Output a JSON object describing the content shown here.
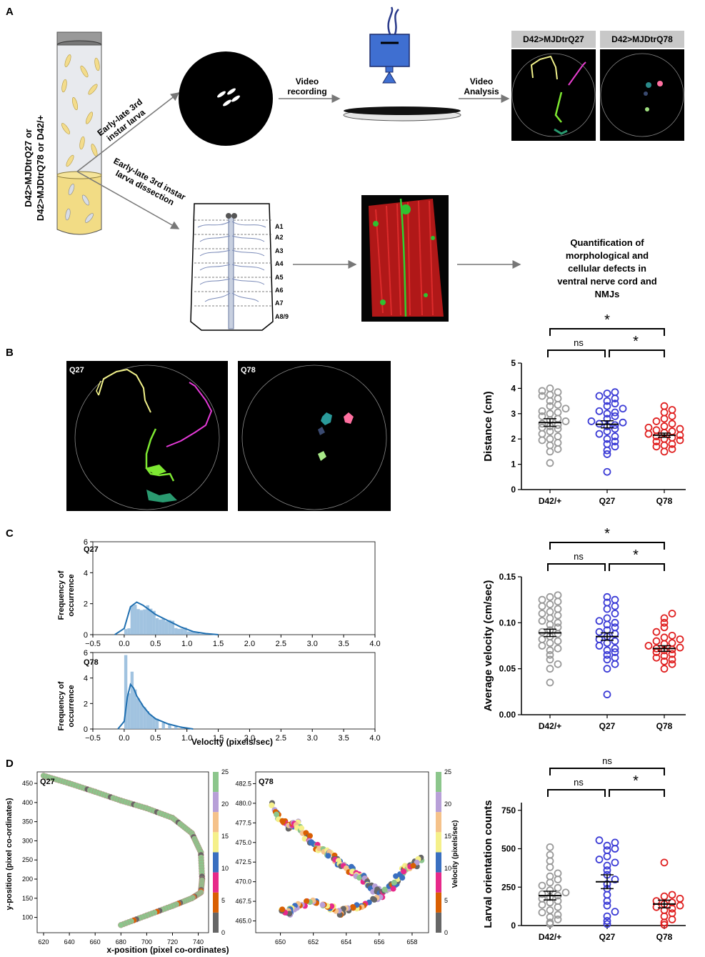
{
  "panels": {
    "a": "A",
    "b": "B",
    "c": "C",
    "d": "D"
  },
  "panel_a": {
    "vial_label": "D42>MJDtrQ27 or D42>MJDtrQ78 or D42/+",
    "vial_label_lines": [
      "D42>MJDtrQ27 or",
      "D42>MJDtrQ78 or D42/+"
    ],
    "arrow_top_label_lines": [
      "Early-late 3rd",
      "instar larva"
    ],
    "arrow_bottom_label_lines": [
      "Early-late 3rd instar",
      "larva dissection"
    ],
    "video_recording_lines": [
      "Video",
      "recording"
    ],
    "video_analysis_lines": [
      "Video",
      "Analysis"
    ],
    "genotype_q27": "D42>MJDtrQ27",
    "genotype_q78": "D42>MJDtrQ78",
    "segments": [
      "A1",
      "A2",
      "A3",
      "A4",
      "A5",
      "A6",
      "A7",
      "A8/9"
    ],
    "quantification_lines": [
      "Quantification of",
      "morphological and",
      "cellular defects in",
      "ventral nerve cord and",
      "NMJs"
    ]
  },
  "panel_b": {
    "q27_label": "Q27",
    "q78_label": "Q78"
  },
  "panel_c_hist": {
    "q27_label": "Q27",
    "q78_label": "Q78",
    "ylabel_lines": [
      "Frequency of",
      "occurrence"
    ],
    "xlabel": "Velocity (pixels/sec)",
    "xticks": [
      "−0.5",
      "0.0",
      "0.5",
      "1.0",
      "1.5",
      "2.0",
      "2.5",
      "3.0",
      "3.5",
      "4.0"
    ],
    "yticks": [
      "0",
      "2",
      "4",
      "6"
    ]
  },
  "panel_d_scatter": {
    "q27_label": "Q27",
    "q78_label": "Q78",
    "ylabel": "y-position (pixel co-ordinates)",
    "xlabel": "x-position (pixel co-ordinates)",
    "q27_xticks": [
      "620",
      "640",
      "660",
      "680",
      "700",
      "720",
      "740"
    ],
    "q27_yticks": [
      "100",
      "150",
      "200",
      "250",
      "300",
      "350",
      "400",
      "450"
    ],
    "q78_xticks": [
      "650",
      "652",
      "654",
      "656",
      "658"
    ],
    "q78_yticks": [
      "465.0",
      "467.5",
      "470.0",
      "472.5",
      "475.0",
      "477.5",
      "480.0",
      "482.5"
    ],
    "colorbar_ticks": [
      "0",
      "5",
      "10",
      "15",
      "20",
      "25"
    ],
    "colorbar_label": "Velocity (pixels/sec)",
    "colorbar_colors": [
      "#666666",
      "#d95f02",
      "#e7298a",
      "#3a6fc0",
      "#f5f08a",
      "#f5c28a",
      "#b8a0d8",
      "#8cc68c"
    ]
  },
  "chart_data": [
    {
      "type": "scatter",
      "ylabel": "Distance (cm)",
      "categories": [
        "D42/+",
        "Q27",
        "Q78"
      ],
      "ylim": [
        0,
        5
      ],
      "yticks": [
        "0",
        "1",
        "2",
        "3",
        "4",
        "5"
      ],
      "colors": [
        "#999999",
        "#3b3bd6",
        "#e02020"
      ],
      "means": [
        2.65,
        2.58,
        2.15
      ],
      "sem": [
        0.15,
        0.14,
        0.08
      ],
      "series": [
        {
          "values": [
            1.05,
            1.5,
            1.6,
            1.75,
            1.85,
            1.95,
            2.0,
            2.1,
            2.2,
            2.3,
            2.4,
            2.45,
            2.5,
            2.55,
            2.6,
            2.7,
            2.75,
            2.8,
            2.9,
            3.0,
            3.05,
            3.1,
            3.2,
            3.3,
            3.35,
            3.5,
            3.6,
            3.7,
            3.75,
            3.85,
            3.9,
            4.0
          ]
        },
        {
          "values": [
            0.7,
            1.4,
            1.55,
            1.7,
            1.8,
            1.9,
            2.0,
            2.1,
            2.2,
            2.3,
            2.4,
            2.5,
            2.55,
            2.6,
            2.65,
            2.7,
            2.8,
            2.9,
            3.0,
            3.05,
            3.1,
            3.2,
            3.3,
            3.4,
            3.5,
            3.6,
            3.7,
            3.8,
            3.85
          ]
        },
        {
          "values": [
            1.5,
            1.6,
            1.7,
            1.75,
            1.8,
            1.9,
            1.95,
            2.0,
            2.05,
            2.1,
            2.15,
            2.2,
            2.25,
            2.3,
            2.35,
            2.4,
            2.45,
            2.5,
            2.6,
            2.7,
            2.8,
            2.9,
            3.05,
            3.15,
            3.3
          ]
        }
      ],
      "annotations": [
        {
          "pair": [
            0,
            2
          ],
          "label": "*"
        },
        {
          "pair": [
            0,
            1
          ],
          "label": "ns"
        },
        {
          "pair": [
            1,
            2
          ],
          "label": "*"
        }
      ]
    },
    {
      "type": "scatter",
      "ylabel": "Average velocity (cm/sec)",
      "categories": [
        "D42/+",
        "Q27",
        "Q78"
      ],
      "ylim": [
        0,
        0.15
      ],
      "yticks": [
        "0.00",
        "0.05",
        "0.10",
        "0.15"
      ],
      "colors": [
        "#999999",
        "#3b3bd6",
        "#e02020"
      ],
      "means": [
        0.089,
        0.085,
        0.072
      ],
      "sem": [
        0.004,
        0.004,
        0.003
      ],
      "series": [
        {
          "values": [
            0.035,
            0.05,
            0.055,
            0.06,
            0.065,
            0.07,
            0.072,
            0.075,
            0.078,
            0.08,
            0.082,
            0.085,
            0.088,
            0.09,
            0.092,
            0.095,
            0.098,
            0.1,
            0.102,
            0.105,
            0.108,
            0.11,
            0.112,
            0.115,
            0.118,
            0.12,
            0.123,
            0.125,
            0.128,
            0.13
          ]
        },
        {
          "values": [
            0.022,
            0.05,
            0.055,
            0.06,
            0.062,
            0.065,
            0.068,
            0.07,
            0.072,
            0.075,
            0.078,
            0.08,
            0.082,
            0.085,
            0.088,
            0.09,
            0.092,
            0.095,
            0.098,
            0.1,
            0.102,
            0.105,
            0.11,
            0.115,
            0.118,
            0.122,
            0.125,
            0.128
          ]
        },
        {
          "values": [
            0.05,
            0.055,
            0.058,
            0.06,
            0.062,
            0.064,
            0.066,
            0.068,
            0.07,
            0.071,
            0.072,
            0.073,
            0.075,
            0.077,
            0.078,
            0.08,
            0.082,
            0.084,
            0.086,
            0.09,
            0.095,
            0.1,
            0.105,
            0.11
          ]
        }
      ],
      "annotations": [
        {
          "pair": [
            0,
            2
          ],
          "label": "*"
        },
        {
          "pair": [
            0,
            1
          ],
          "label": "ns"
        },
        {
          "pair": [
            1,
            2
          ],
          "label": "*"
        }
      ]
    },
    {
      "type": "scatter",
      "ylabel": "Larval orientation counts",
      "categories": [
        "D42/+",
        "Q27",
        "Q78"
      ],
      "ylim": [
        0,
        800
      ],
      "yticks": [
        "0",
        "250",
        "500",
        "750"
      ],
      "colors": [
        "#999999",
        "#3b3bd6",
        "#e02020"
      ],
      "means": [
        195,
        285,
        140
      ],
      "sem": [
        28,
        45,
        25
      ],
      "series": [
        {
          "values": [
            10,
            20,
            40,
            55,
            70,
            85,
            100,
            120,
            135,
            150,
            160,
            175,
            185,
            195,
            205,
            215,
            230,
            245,
            260,
            280,
            300,
            320,
            340,
            380,
            420,
            460,
            510
          ]
        },
        {
          "values": [
            10,
            30,
            60,
            90,
            130,
            160,
            200,
            240,
            270,
            300,
            330,
            360,
            390,
            410,
            430,
            450,
            490,
            500,
            520,
            540,
            555
          ]
        },
        {
          "values": [
            5,
            20,
            40,
            60,
            80,
            100,
            110,
            120,
            130,
            140,
            150,
            160,
            175,
            190,
            200,
            410
          ]
        }
      ],
      "annotations": [
        {
          "pair": [
            0,
            2
          ],
          "label": "ns"
        },
        {
          "pair": [
            0,
            1
          ],
          "label": "ns"
        },
        {
          "pair": [
            1,
            2
          ],
          "label": "*"
        }
      ]
    }
  ]
}
